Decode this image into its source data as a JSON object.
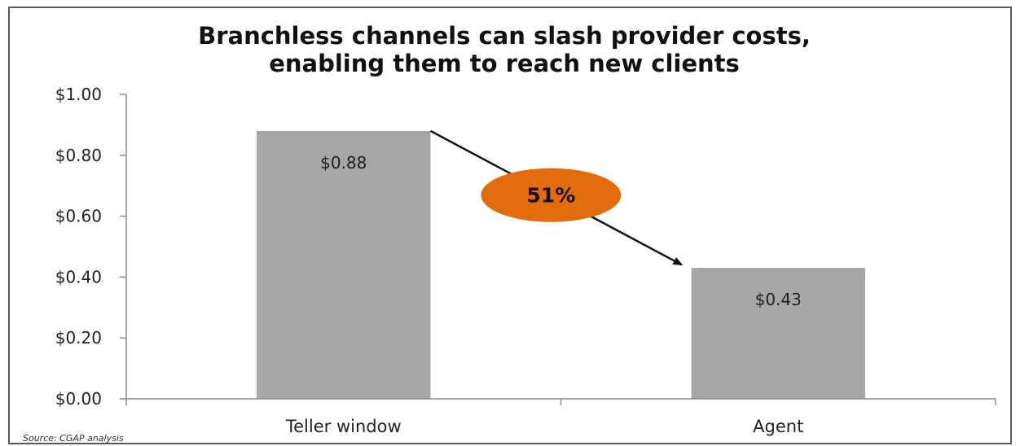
{
  "chart_data": {
    "type": "bar",
    "title_lines": [
      "Branchless channels can slash provider costs,",
      "enabling them to reach new clients"
    ],
    "categories": [
      "Teller window",
      "Agent"
    ],
    "values": [
      0.88,
      0.43
    ],
    "data_labels": [
      "$0.88",
      "$0.43"
    ],
    "ylim": [
      0,
      1.0
    ],
    "yticks": [
      0,
      0.2,
      0.4,
      0.6,
      0.8,
      1.0
    ],
    "ytick_labels": [
      "$0.00",
      "$0.20",
      "$0.40",
      "$0.60",
      "$0.80",
      "$1.00"
    ],
    "xlabel": "",
    "ylabel": "",
    "grid": false,
    "bar_color": "#a6a6a6",
    "annotation": {
      "text": "51%",
      "color": "#e26b0a"
    },
    "source": "Source: CGAP analysis"
  }
}
